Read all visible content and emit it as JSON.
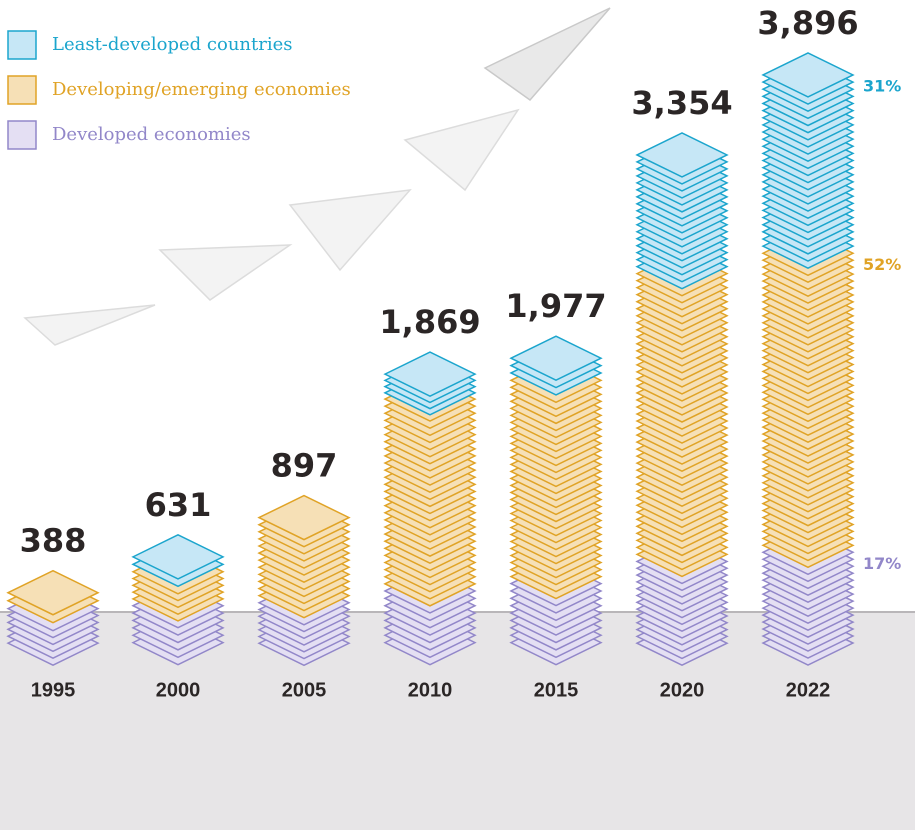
{
  "chart_data": {
    "type": "bar",
    "stacked": true,
    "categories": [
      "1995",
      "2000",
      "2005",
      "2010",
      "2015",
      "2020",
      "2022"
    ],
    "series": [
      {
        "name": "Developed economies",
        "color": "#9287c9",
        "fill": "#e4dff3",
        "values": [
          280,
          300,
          320,
          400,
          450,
          600,
          662
        ],
        "share_value": 17,
        "share_label": "17%"
      },
      {
        "name": "Developing/emerging economies",
        "color": "#e0a326",
        "fill": "#f6e0b6",
        "values": [
          108,
          230,
          577,
          1300,
          1377,
          1950,
          2026
        ],
        "share_value": 52,
        "share_label": "52%"
      },
      {
        "name": "Least-developed countries",
        "color": "#1ba5cd",
        "fill": "#c6e7f6",
        "values": [
          0,
          101,
          0,
          169,
          150,
          804,
          1208
        ],
        "share_value": 31,
        "share_label": "31%"
      }
    ],
    "totals": [
      388,
      631,
      897,
      1869,
      1977,
      3354,
      3896
    ],
    "total_labels": [
      "388",
      "631",
      "897",
      "1,869",
      "1,977",
      "3,354",
      "3,896"
    ]
  }
}
